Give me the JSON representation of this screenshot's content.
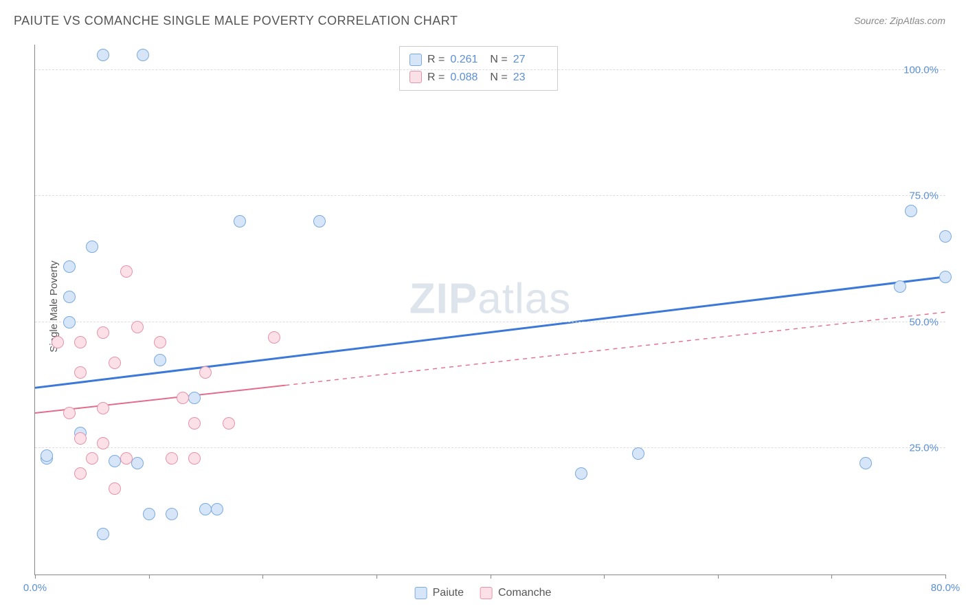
{
  "title": "PAIUTE VS COMANCHE SINGLE MALE POVERTY CORRELATION CHART",
  "source": "Source: ZipAtlas.com",
  "ylabel": "Single Male Poverty",
  "watermark_bold": "ZIP",
  "watermark_rest": "atlas",
  "xlim": [
    0,
    80
  ],
  "ylim": [
    0,
    105
  ],
  "xtick_positions": [
    0,
    10,
    20,
    30,
    40,
    50,
    60,
    70,
    80
  ],
  "xtick_labels": {
    "0": "0.0%",
    "80": "80.0%"
  },
  "ytick_positions": [
    25,
    50,
    75,
    100
  ],
  "ytick_labels": [
    "25.0%",
    "50.0%",
    "75.0%",
    "100.0%"
  ],
  "grid_color": "#dddddd",
  "background_color": "#ffffff",
  "axis_color": "#888888",
  "tick_label_color": "#5b8fd6",
  "series": [
    {
      "name": "Paiute",
      "color_fill": "#d6e6f8",
      "color_stroke": "#7aa9de",
      "r_value": "0.261",
      "n_value": "27",
      "marker_radius": 9,
      "trend": {
        "x1": 0,
        "y1": 37,
        "x2": 80,
        "y2": 59,
        "solid_until_x": 80,
        "stroke": "#3b78d8",
        "width": 3
      },
      "points": [
        [
          6,
          103
        ],
        [
          9.5,
          103
        ],
        [
          1,
          23
        ],
        [
          1,
          23.5
        ],
        [
          48,
          20
        ],
        [
          53,
          24
        ],
        [
          73,
          22
        ],
        [
          5,
          65
        ],
        [
          3,
          61
        ],
        [
          3,
          55
        ],
        [
          3,
          50
        ],
        [
          11,
          42.5
        ],
        [
          18,
          70
        ],
        [
          25,
          70
        ],
        [
          12,
          12
        ],
        [
          14,
          35
        ],
        [
          9,
          22
        ],
        [
          7,
          22.5
        ],
        [
          6,
          8
        ],
        [
          10,
          12
        ],
        [
          15,
          13
        ],
        [
          16,
          13
        ],
        [
          4,
          28
        ],
        [
          77,
          72
        ],
        [
          80,
          67
        ],
        [
          76,
          57
        ],
        [
          80,
          59
        ]
      ]
    },
    {
      "name": "Comanche",
      "color_fill": "#fbe0e7",
      "color_stroke": "#e593aa",
      "r_value": "0.088",
      "n_value": "23",
      "marker_radius": 9,
      "trend": {
        "x1": 0,
        "y1": 32,
        "x2": 80,
        "y2": 52,
        "solid_until_x": 22,
        "stroke": "#e36b8b",
        "width": 2
      },
      "points": [
        [
          2,
          46
        ],
        [
          4,
          46
        ],
        [
          8,
          60
        ],
        [
          6,
          48
        ],
        [
          9,
          49
        ],
        [
          11,
          46
        ],
        [
          7,
          42
        ],
        [
          4,
          40
        ],
        [
          6,
          33
        ],
        [
          4,
          27
        ],
        [
          5,
          23
        ],
        [
          6,
          26
        ],
        [
          7,
          17
        ],
        [
          8,
          23
        ],
        [
          13,
          35
        ],
        [
          14,
          30
        ],
        [
          15,
          40
        ],
        [
          17,
          30
        ],
        [
          12,
          23
        ],
        [
          14,
          23
        ],
        [
          21,
          47
        ],
        [
          3,
          32
        ],
        [
          4,
          20
        ]
      ]
    }
  ],
  "legend_stats_labels": {
    "r": "R =",
    "n": "N ="
  },
  "bottom_legend": [
    "Paiute",
    "Comanche"
  ]
}
